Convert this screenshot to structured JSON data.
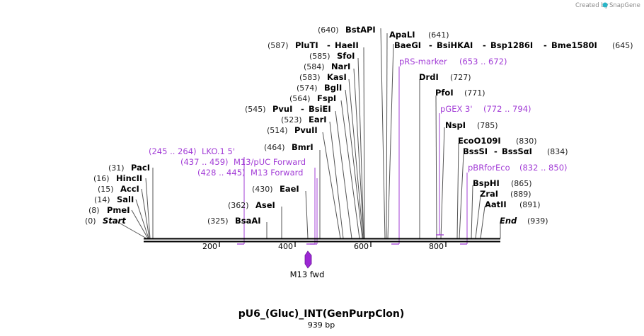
{
  "branding": {
    "created_by": "Created by",
    "app": "SnapGene"
  },
  "map": {
    "name": "pU6_(Gluc)_INT(GenPurpClon)",
    "length_label": "939 bp",
    "length": 939
  },
  "axis": {
    "ticks": [
      "200",
      "400",
      "600",
      "800"
    ]
  },
  "colors": {
    "primer": "#a23cd6",
    "line": "#555555",
    "backbone": "#000000"
  },
  "ends": [
    {
      "pos": "(0)",
      "name": "Start"
    },
    {
      "name": "End",
      "pos": "(939)"
    }
  ],
  "sites": [
    {
      "pos": "(8)",
      "name": "PmeI"
    },
    {
      "pos": "(14)",
      "name": "SalI"
    },
    {
      "pos": "(15)",
      "name": "AccI"
    },
    {
      "pos": "(16)",
      "name": "HincII"
    },
    {
      "pos": "(31)",
      "name": "PacI"
    },
    {
      "pos": "(325)",
      "name": "BsaAI"
    },
    {
      "pos": "(362)",
      "name": "AseI"
    },
    {
      "pos": "(430)",
      "name": "EaeI"
    },
    {
      "pos": "(464)",
      "name": "BmrI"
    },
    {
      "pos": "(514)",
      "name": "PvuII"
    },
    {
      "pos": "(523)",
      "name": "EarI"
    },
    {
      "pos": "(545)",
      "name": "PvuI",
      "name2": "BsiEI"
    },
    {
      "pos": "(564)",
      "name": "FspI"
    },
    {
      "pos": "(574)",
      "name": "BglI"
    },
    {
      "pos": "(583)",
      "name": "KasI"
    },
    {
      "pos": "(584)",
      "name": "NarI"
    },
    {
      "pos": "(585)",
      "name": "SfoI"
    },
    {
      "pos": "(587)",
      "name": "PluTI",
      "name2": "HaeII"
    },
    {
      "pos": "(640)",
      "name": "BstAPI"
    },
    {
      "name": "ApaLI",
      "pos": "(641)"
    },
    {
      "name": "BaeGI",
      "name2": "BsiHKAI",
      "name3": "Bsp1286I",
      "name4": "Bme1580I",
      "pos": "(645)"
    },
    {
      "name": "DrdI",
      "pos": "(727)"
    },
    {
      "name": "PfoI",
      "pos": "(771)"
    },
    {
      "name": "NspI",
      "pos": "(785)"
    },
    {
      "name": "EcoO109I",
      "pos": "(830)"
    },
    {
      "name": "BssSI",
      "name2": "BssSαI",
      "pos": "(834)"
    },
    {
      "name": "BspHI",
      "pos": "(865)"
    },
    {
      "name": "ZraI",
      "pos": "(889)"
    },
    {
      "name": "AatII",
      "pos": "(891)"
    }
  ],
  "primers": [
    {
      "range": "(245 .. 264)",
      "name": "LKO.1 5'"
    },
    {
      "range": "(437 .. 459)",
      "name": "M13/pUC Forward"
    },
    {
      "range": "(428 .. 445)",
      "name": "M13 Forward"
    },
    {
      "name": "pRS-marker",
      "range": "(653 .. 672)"
    },
    {
      "name": "pGEX 3'",
      "range": "(772 .. 794)"
    },
    {
      "name": "pBRforEco",
      "range": "(832 .. 850)"
    }
  ],
  "features": [
    {
      "name": "M13 fwd"
    }
  ]
}
